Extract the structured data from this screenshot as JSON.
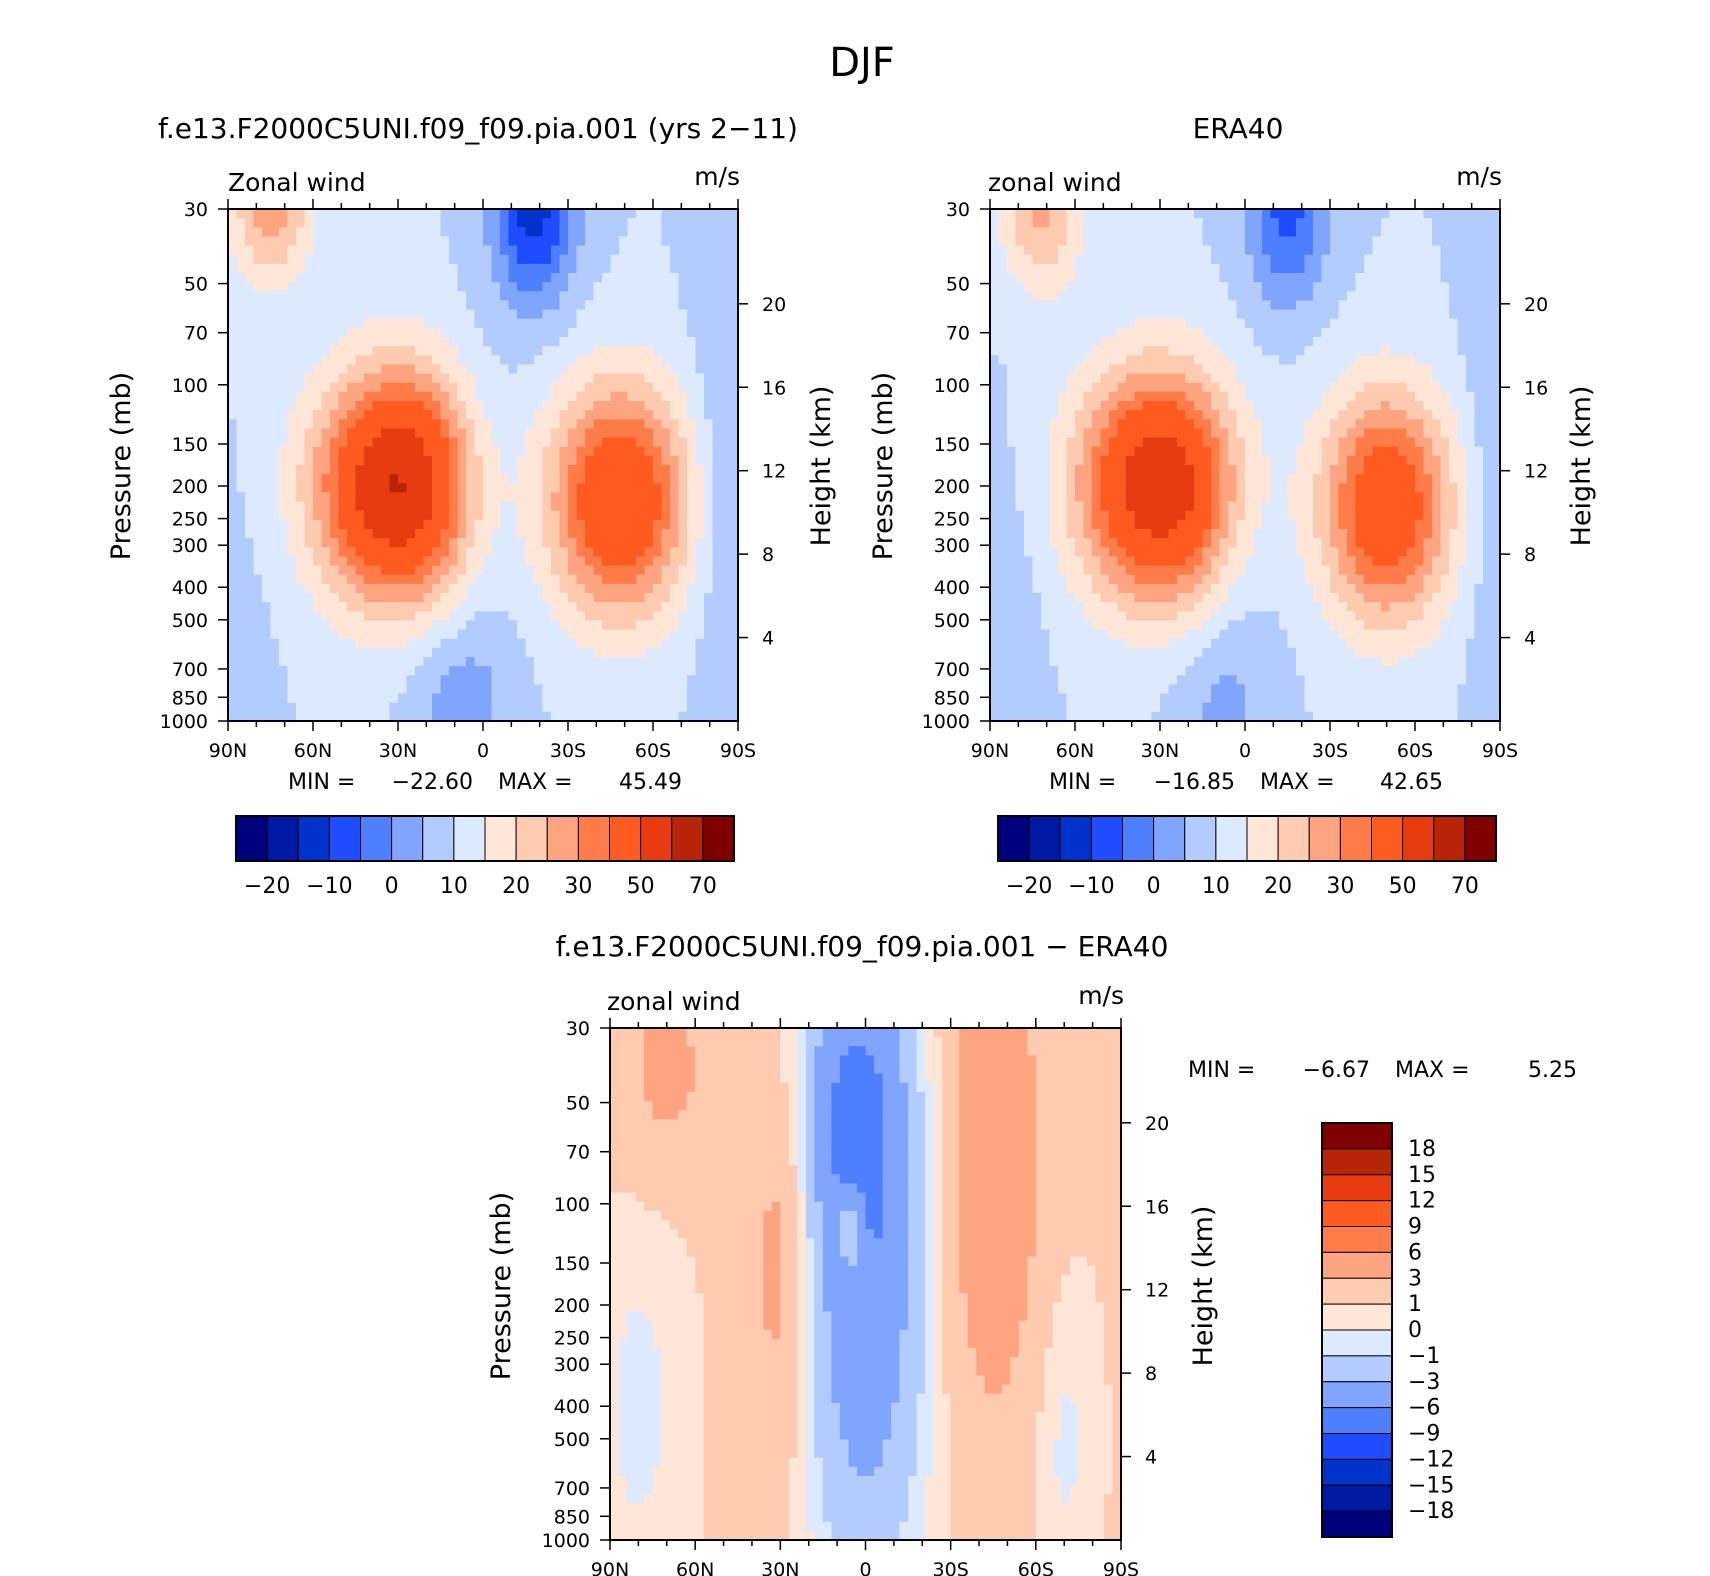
{
  "figure_title": "DJF",
  "chart_data": [
    {
      "type": "heatmap",
      "title": "f.e13.F2000C5UNI.f09_f09.pia.001 (yrs 2−11)",
      "corner_left": "Zonal wind",
      "corner_right": "m/s",
      "xlabel": "",
      "ylabel": "Pressure (mb)",
      "ylabel_right": "Height (km)",
      "x_ticks": [
        "90N",
        "60N",
        "30N",
        "0",
        "30S",
        "60S",
        "90S"
      ],
      "x_values": [
        90,
        60,
        30,
        0,
        -30,
        -60,
        -90
      ],
      "y_ticks": [
        "30",
        "50",
        "70",
        "100",
        "150",
        "200",
        "250",
        "300",
        "400",
        "500",
        "700",
        "850",
        "1000"
      ],
      "y_values": [
        30,
        50,
        70,
        100,
        150,
        200,
        250,
        300,
        400,
        500,
        700,
        850,
        1000
      ],
      "height_ticks": [
        "20",
        "16",
        "12",
        "8",
        "4"
      ],
      "height_values": [
        20,
        16,
        12,
        8,
        4
      ],
      "stats": {
        "min_label": "MIN =",
        "min_value": "−22.60",
        "max_label": "MAX =",
        "max_value": "45.49"
      },
      "features": [
        {
          "lat": 30,
          "p": 200,
          "value": 45.49,
          "sx": 20,
          "sy": 0.55
        },
        {
          "lat": -48,
          "p": 220,
          "value": 35,
          "sx": 17,
          "sy": 0.55
        },
        {
          "lat": 75,
          "p": 30,
          "value": 18,
          "sx": 10,
          "sy": 0.35
        },
        {
          "lat": -18,
          "p": 30,
          "value": -22.6,
          "sx": 10,
          "sy": 0.45
        },
        {
          "lat": 0,
          "p": 200,
          "value": -6,
          "sx": 11,
          "sy": 0.7
        },
        {
          "lat": -85,
          "p": 150,
          "value": -5,
          "sx": 8,
          "sy": 1.5
        },
        {
          "lat": 88,
          "p": 600,
          "value": -2,
          "sx": 10,
          "sy": 0.9
        },
        {
          "lat": 8,
          "p": 900,
          "value": -8,
          "sx": 12,
          "sy": 0.4
        }
      ]
    },
    {
      "type": "heatmap",
      "title": "ERA40",
      "corner_left": "zonal wind",
      "corner_right": "m/s",
      "xlabel": "",
      "ylabel": "Pressure (mb)",
      "ylabel_right": "Height (km)",
      "x_ticks": [
        "90N",
        "60N",
        "30N",
        "0",
        "30S",
        "60S",
        "90S"
      ],
      "x_values": [
        90,
        60,
        30,
        0,
        -30,
        -60,
        -90
      ],
      "y_ticks": [
        "30",
        "50",
        "70",
        "100",
        "150",
        "200",
        "250",
        "300",
        "400",
        "500",
        "700",
        "850",
        "1000"
      ],
      "y_values": [
        30,
        50,
        70,
        100,
        150,
        200,
        250,
        300,
        400,
        500,
        700,
        850,
        1000
      ],
      "height_ticks": [
        "20",
        "16",
        "12",
        "8",
        "4"
      ],
      "height_values": [
        20,
        16,
        12,
        8,
        4
      ],
      "stats": {
        "min_label": "MIN =",
        "min_value": "−16.85",
        "max_label": "MAX =",
        "max_value": "42.65"
      },
      "features": [
        {
          "lat": 30,
          "p": 200,
          "value": 42.65,
          "sx": 20,
          "sy": 0.55
        },
        {
          "lat": -50,
          "p": 230,
          "value": 33,
          "sx": 16,
          "sy": 0.55
        },
        {
          "lat": 72,
          "p": 30,
          "value": 16,
          "sx": 10,
          "sy": 0.4
        },
        {
          "lat": -15,
          "p": 30,
          "value": -16.85,
          "sx": 10,
          "sy": 0.45
        },
        {
          "lat": 0,
          "p": 250,
          "value": -4,
          "sx": 11,
          "sy": 0.7
        },
        {
          "lat": -88,
          "p": 150,
          "value": -4,
          "sx": 8,
          "sy": 1.5
        },
        {
          "lat": 85,
          "p": 500,
          "value": -3,
          "sx": 10,
          "sy": 0.9
        },
        {
          "lat": 8,
          "p": 900,
          "value": -6,
          "sx": 12,
          "sy": 0.4
        }
      ]
    },
    {
      "type": "heatmap",
      "title": "f.e13.F2000C5UNI.f09_f09.pia.001 − ERA40",
      "corner_left": "zonal wind",
      "corner_right": "m/s",
      "xlabel": "",
      "ylabel": "Pressure (mb)",
      "ylabel_right": "Height (km)",
      "x_ticks": [
        "90N",
        "60N",
        "30N",
        "0",
        "30S",
        "60S",
        "90S"
      ],
      "x_values": [
        90,
        60,
        30,
        0,
        -30,
        -60,
        -90
      ],
      "y_ticks": [
        "30",
        "50",
        "70",
        "100",
        "150",
        "200",
        "250",
        "300",
        "400",
        "500",
        "700",
        "850",
        "1000"
      ],
      "y_values": [
        30,
        50,
        70,
        100,
        150,
        200,
        250,
        300,
        400,
        500,
        700,
        850,
        1000
      ],
      "height_ticks": [
        "20",
        "16",
        "12",
        "8",
        "4"
      ],
      "height_values": [
        20,
        16,
        12,
        8,
        4
      ],
      "stats": {
        "min_label": "MIN =",
        "min_value": "−6.67",
        "max_label": "MAX =",
        "max_value": "5.25"
      },
      "base_value": 1.2,
      "features": [
        {
          "lat": 70,
          "p": 40,
          "value": 2.5,
          "sx": 12,
          "sy": 0.5
        },
        {
          "lat": 30,
          "p": 150,
          "value": 3,
          "sx": 8,
          "sy": 0.9
        },
        {
          "lat": -45,
          "p": 80,
          "value": 4.2,
          "sx": 12,
          "sy": 1.2
        },
        {
          "lat": 0,
          "p": 150,
          "value": -6.67,
          "sx": 15,
          "sy": 1.5
        },
        {
          "lat": 5,
          "p": 50,
          "value": -4,
          "sx": 12,
          "sy": 0.6
        },
        {
          "lat": 80,
          "p": 400,
          "value": -1.5,
          "sx": 12,
          "sy": 1.0
        },
        {
          "lat": -70,
          "p": 500,
          "value": -1.5,
          "sx": 8,
          "sy": 0.8
        },
        {
          "lat": 5,
          "p": 120,
          "value": 5.25,
          "sx": 3,
          "sy": 0.2
        }
      ]
    }
  ],
  "colorbar_main": {
    "levels": [
      "−20",
      "−10",
      "0",
      "10",
      "20",
      "30",
      "50",
      "70"
    ],
    "thresholds": [
      -25,
      -20,
      -15,
      -10,
      -5,
      0,
      5,
      10,
      15,
      20,
      25,
      30,
      40,
      50,
      60,
      70
    ],
    "colors": [
      "#00007f",
      "#0019a5",
      "#0033cc",
      "#1f4cff",
      "#4d7fff",
      "#7fa5ff",
      "#b3ccff",
      "#dde9ff",
      "#ffe6d6",
      "#ffcbb0",
      "#ffa480",
      "#ff7b48",
      "#ff5a1f",
      "#e83c10",
      "#b82408",
      "#800000"
    ]
  },
  "colorbar_diff": {
    "levels": [
      "18",
      "15",
      "12",
      "9",
      "6",
      "3",
      "1",
      "0",
      "−1",
      "−3",
      "−6",
      "−9",
      "−12",
      "−15",
      "−18"
    ],
    "thresholds": [
      -18,
      -15,
      -12,
      -9,
      -6,
      -3,
      -1,
      0,
      1,
      3,
      6,
      9,
      12,
      15,
      18
    ],
    "colors": [
      "#00007f",
      "#0019a5",
      "#0033cc",
      "#1f4cff",
      "#4d7fff",
      "#7fa5ff",
      "#b3ccff",
      "#dde9ff",
      "#ffe6d6",
      "#ffcbb0",
      "#ffa480",
      "#ff7b48",
      "#ff5a1f",
      "#e83c10",
      "#b82408",
      "#800000"
    ]
  }
}
